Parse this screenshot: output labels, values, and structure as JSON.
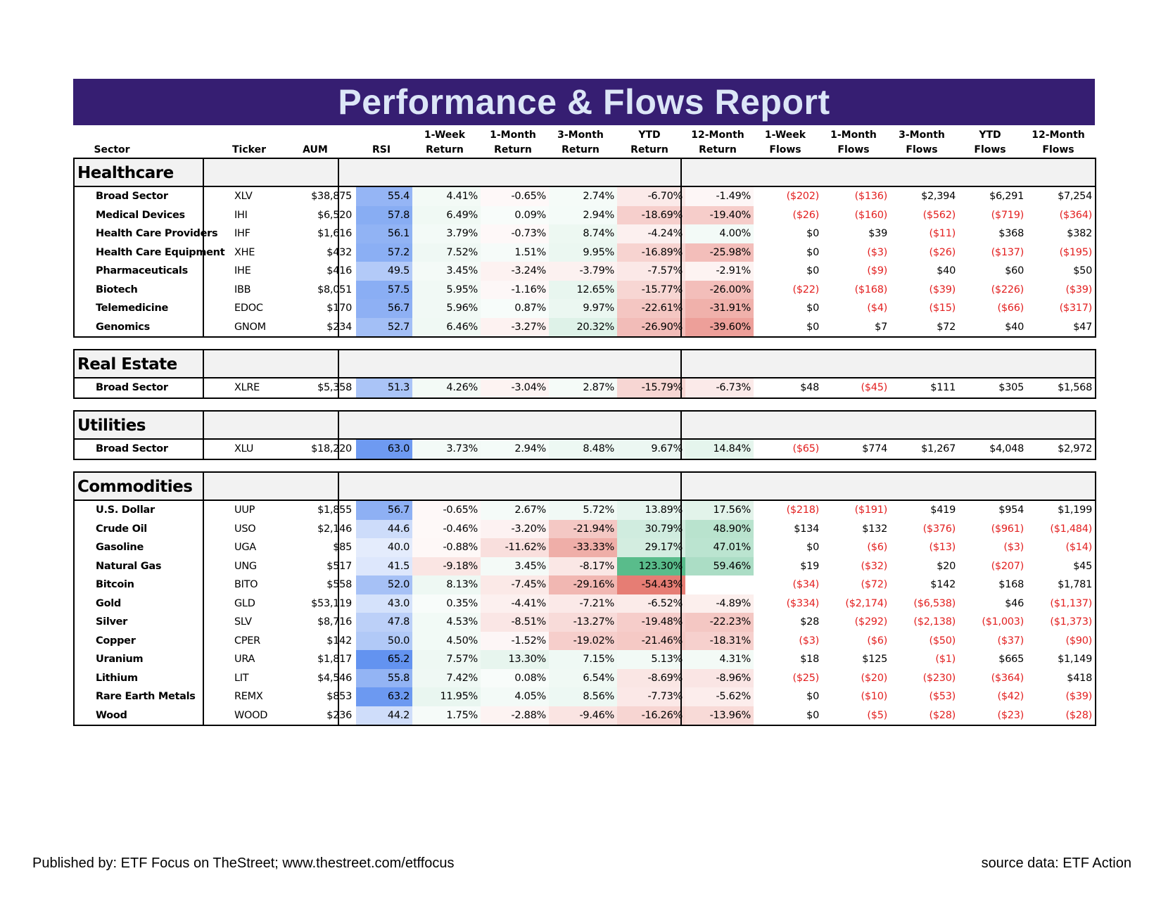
{
  "title": "Performance & Flows Report",
  "columns": {
    "sector": [
      "Sector"
    ],
    "ticker": [
      "Ticker"
    ],
    "aum": [
      "AUM"
    ],
    "rsi": [
      "RSI"
    ],
    "w1r": [
      "1-Week",
      "Return"
    ],
    "m1r": [
      "1-Month",
      "Return"
    ],
    "m3r": [
      "3-Month",
      "Return"
    ],
    "ytdr": [
      "YTD",
      "Return"
    ],
    "m12r": [
      "12-Month",
      "Return"
    ],
    "w1f": [
      "1-Week",
      "Flows"
    ],
    "m1f": [
      "1-Month",
      "Flows"
    ],
    "m3f": [
      "3-Month",
      "Flows"
    ],
    "ytdf": [
      "YTD",
      "Flows"
    ],
    "m12f": [
      "12-Month",
      "Flows"
    ]
  },
  "groups": [
    {
      "name": "Healthcare",
      "rows": [
        {
          "sector": "Broad Sector",
          "ticker": "XLV",
          "aum": "$38,875",
          "rsi": "55.4",
          "w1r": "4.41%",
          "m1r": "-0.65%",
          "m3r": "2.74%",
          "ytdr": "-6.70%",
          "m12r": "-1.49%",
          "w1f": "($202)",
          "m1f": "($136)",
          "m3f": "$2,394",
          "ytdf": "$6,291",
          "m12f": "$7,254"
        },
        {
          "sector": "Medical Devices",
          "ticker": "IHI",
          "aum": "$6,520",
          "rsi": "57.8",
          "w1r": "6.49%",
          "m1r": "0.09%",
          "m3r": "2.94%",
          "ytdr": "-18.69%",
          "m12r": "-19.40%",
          "w1f": "($26)",
          "m1f": "($160)",
          "m3f": "($562)",
          "ytdf": "($719)",
          "m12f": "($364)"
        },
        {
          "sector": "Health Care Providers",
          "ticker": "IHF",
          "aum": "$1,616",
          "rsi": "56.1",
          "w1r": "3.79%",
          "m1r": "-0.73%",
          "m3r": "8.74%",
          "ytdr": "-4.24%",
          "m12r": "4.00%",
          "w1f": "$0",
          "m1f": "$39",
          "m3f": "($11)",
          "ytdf": "$368",
          "m12f": "$382"
        },
        {
          "sector": "Health Care Equipment",
          "ticker": "XHE",
          "aum": "$432",
          "rsi": "57.2",
          "w1r": "7.52%",
          "m1r": "1.51%",
          "m3r": "9.95%",
          "ytdr": "-16.89%",
          "m12r": "-25.98%",
          "w1f": "$0",
          "m1f": "($3)",
          "m3f": "($26)",
          "ytdf": "($137)",
          "m12f": "($195)"
        },
        {
          "sector": "Pharmaceuticals",
          "ticker": "IHE",
          "aum": "$416",
          "rsi": "49.5",
          "w1r": "3.45%",
          "m1r": "-3.24%",
          "m3r": "-3.79%",
          "ytdr": "-7.57%",
          "m12r": "-2.91%",
          "w1f": "$0",
          "m1f": "($9)",
          "m3f": "$40",
          "ytdf": "$60",
          "m12f": "$50"
        },
        {
          "sector": "Biotech",
          "ticker": "IBB",
          "aum": "$8,051",
          "rsi": "57.5",
          "w1r": "5.95%",
          "m1r": "-1.16%",
          "m3r": "12.65%",
          "ytdr": "-15.77%",
          "m12r": "-26.00%",
          "w1f": "($22)",
          "m1f": "($168)",
          "m3f": "($39)",
          "ytdf": "($226)",
          "m12f": "($39)"
        },
        {
          "sector": "Telemedicine",
          "ticker": "EDOC",
          "aum": "$170",
          "rsi": "56.7",
          "w1r": "5.96%",
          "m1r": "0.87%",
          "m3r": "9.97%",
          "ytdr": "-22.61%",
          "m12r": "-31.91%",
          "w1f": "$0",
          "m1f": "($4)",
          "m3f": "($15)",
          "ytdf": "($66)",
          "m12f": "($317)"
        },
        {
          "sector": "Genomics",
          "ticker": "GNOM",
          "aum": "$234",
          "rsi": "52.7",
          "w1r": "6.46%",
          "m1r": "-3.27%",
          "m3r": "20.32%",
          "ytdr": "-26.90%",
          "m12r": "-39.60%",
          "w1f": "$0",
          "m1f": "$7",
          "m3f": "$72",
          "ytdf": "$40",
          "m12f": "$47"
        }
      ]
    },
    {
      "name": "Real Estate",
      "rows": [
        {
          "sector": "Broad Sector",
          "ticker": "XLRE",
          "aum": "$5,358",
          "rsi": "51.3",
          "w1r": "4.26%",
          "m1r": "-3.04%",
          "m3r": "2.87%",
          "ytdr": "-15.79%",
          "m12r": "-6.73%",
          "w1f": "$48",
          "m1f": "($45)",
          "m3f": "$111",
          "ytdf": "$305",
          "m12f": "$1,568"
        }
      ]
    },
    {
      "name": "Utilities",
      "rows": [
        {
          "sector": "Broad Sector",
          "ticker": "XLU",
          "aum": "$18,220",
          "rsi": "63.0",
          "w1r": "3.73%",
          "m1r": "2.94%",
          "m3r": "8.48%",
          "ytdr": "9.67%",
          "m12r": "14.84%",
          "w1f": "($65)",
          "m1f": "$774",
          "m3f": "$1,267",
          "ytdf": "$4,048",
          "m12f": "$2,972"
        }
      ]
    },
    {
      "name": "Commodities",
      "rows": [
        {
          "sector": "U.S. Dollar",
          "ticker": "UUP",
          "aum": "$1,855",
          "rsi": "56.7",
          "w1r": "-0.65%",
          "m1r": "2.67%",
          "m3r": "5.72%",
          "ytdr": "13.89%",
          "m12r": "17.56%",
          "w1f": "($218)",
          "m1f": "($191)",
          "m3f": "$419",
          "ytdf": "$954",
          "m12f": "$1,199"
        },
        {
          "sector": "Crude Oil",
          "ticker": "USO",
          "aum": "$2,146",
          "rsi": "44.6",
          "w1r": "-0.46%",
          "m1r": "-3.20%",
          "m3r": "-21.94%",
          "ytdr": "30.79%",
          "m12r": "48.90%",
          "w1f": "$134",
          "m1f": "$132",
          "m3f": "($376)",
          "ytdf": "($961)",
          "m12f": "($1,484)"
        },
        {
          "sector": "Gasoline",
          "ticker": "UGA",
          "aum": "$85",
          "rsi": "40.0",
          "w1r": "-0.88%",
          "m1r": "-11.62%",
          "m3r": "-33.33%",
          "ytdr": "29.17%",
          "m12r": "47.01%",
          "w1f": "$0",
          "m1f": "($6)",
          "m3f": "($13)",
          "ytdf": "($3)",
          "m12f": "($14)"
        },
        {
          "sector": "Natural Gas",
          "ticker": "UNG",
          "aum": "$517",
          "rsi": "41.5",
          "w1r": "-9.18%",
          "m1r": "3.45%",
          "m3r": "-8.17%",
          "ytdr": "123.30%",
          "m12r": "59.46%",
          "w1f": "$19",
          "m1f": "($32)",
          "m3f": "$20",
          "ytdf": "($207)",
          "m12f": "$45"
        },
        {
          "sector": "Bitcoin",
          "ticker": "BITO",
          "aum": "$558",
          "rsi": "52.0",
          "w1r": "8.13%",
          "m1r": "-7.45%",
          "m3r": "-29.16%",
          "ytdr": "-54.43%",
          "m12r": "",
          "w1f": "($34)",
          "m1f": "($72)",
          "m3f": "$142",
          "ytdf": "$168",
          "m12f": "$1,781"
        },
        {
          "sector": "Gold",
          "ticker": "GLD",
          "aum": "$53,119",
          "rsi": "43.0",
          "w1r": "0.35%",
          "m1r": "-4.41%",
          "m3r": "-7.21%",
          "ytdr": "-6.52%",
          "m12r": "-4.89%",
          "w1f": "($334)",
          "m1f": "($2,174)",
          "m3f": "($6,538)",
          "ytdf": "$46",
          "m12f": "($1,137)"
        },
        {
          "sector": "Silver",
          "ticker": "SLV",
          "aum": "$8,716",
          "rsi": "47.8",
          "w1r": "4.53%",
          "m1r": "-8.51%",
          "m3r": "-13.27%",
          "ytdr": "-19.48%",
          "m12r": "-22.23%",
          "w1f": "$28",
          "m1f": "($292)",
          "m3f": "($2,138)",
          "ytdf": "($1,003)",
          "m12f": "($1,373)"
        },
        {
          "sector": "Copper",
          "ticker": "CPER",
          "aum": "$142",
          "rsi": "50.0",
          "w1r": "4.50%",
          "m1r": "-1.52%",
          "m3r": "-19.02%",
          "ytdr": "-21.46%",
          "m12r": "-18.31%",
          "w1f": "($3)",
          "m1f": "($6)",
          "m3f": "($50)",
          "ytdf": "($37)",
          "m12f": "($90)"
        },
        {
          "sector": "Uranium",
          "ticker": "URA",
          "aum": "$1,817",
          "rsi": "65.2",
          "w1r": "7.57%",
          "m1r": "13.30%",
          "m3r": "7.15%",
          "ytdr": "5.13%",
          "m12r": "4.31%",
          "w1f": "$18",
          "m1f": "$125",
          "m3f": "($1)",
          "ytdf": "$665",
          "m12f": "$1,149"
        },
        {
          "sector": "Lithium",
          "ticker": "LIT",
          "aum": "$4,546",
          "rsi": "55.8",
          "w1r": "7.42%",
          "m1r": "0.08%",
          "m3r": "6.54%",
          "ytdr": "-8.69%",
          "m12r": "-8.96%",
          "w1f": "($25)",
          "m1f": "($20)",
          "m3f": "($230)",
          "ytdf": "($364)",
          "m12f": "$418"
        },
        {
          "sector": "Rare Earth Metals",
          "ticker": "REMX",
          "aum": "$853",
          "rsi": "63.2",
          "w1r": "11.95%",
          "m1r": "4.05%",
          "m3r": "8.56%",
          "ytdr": "-7.73%",
          "m12r": "-5.62%",
          "w1f": "$0",
          "m1f": "($10)",
          "m3f": "($53)",
          "ytdf": "($42)",
          "m12f": "($39)"
        },
        {
          "sector": "Wood",
          "ticker": "WOOD",
          "aum": "$236",
          "rsi": "44.2",
          "w1r": "1.75%",
          "m1r": "-2.88%",
          "m3r": "-9.46%",
          "ytdr": "-16.26%",
          "m12r": "-13.96%",
          "w1f": "$0",
          "m1f": "($5)",
          "m3f": "($28)",
          "ytdf": "($23)",
          "m12f": "($28)"
        }
      ]
    }
  ],
  "colors": {
    "banner": "#361e72",
    "banner_text": "#dce6f7",
    "negative_text": "#e32020",
    "heat_positive": "#57bb8a",
    "heat_negative": "#e67c73",
    "rsi_scale": "#5b8def",
    "group_header_bg": "#f2f2f2"
  },
  "footer": {
    "left": "Published by: ETF Focus on TheStreet; www.thestreet.com/etffocus",
    "right": "source data: ETF Action"
  }
}
